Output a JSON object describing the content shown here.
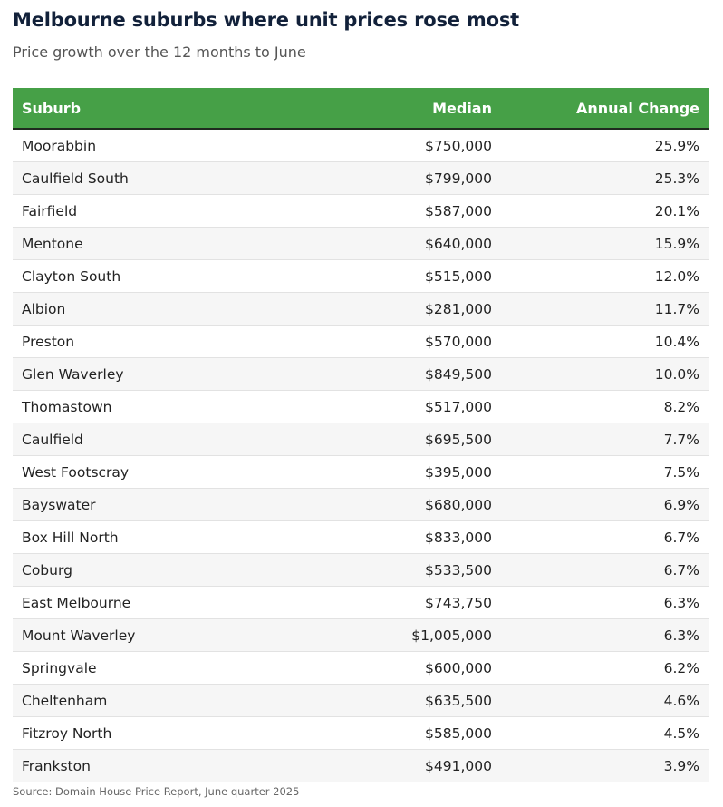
{
  "title": "Melbourne suburbs where unit prices rose most",
  "subtitle": "Price growth over the 12 months to June",
  "source": "Source: Domain House Price Report, June quarter 2025",
  "colors": {
    "header_bg": "#46a047",
    "header_text": "#ffffff",
    "title": "#12213a"
  },
  "chart_data": {
    "type": "table",
    "columns": [
      "Suburb",
      "Median",
      "Annual Change"
    ],
    "rows": [
      [
        "Moorabbin",
        "$750,000",
        "25.9%"
      ],
      [
        "Caulfield South",
        "$799,000",
        "25.3%"
      ],
      [
        "Fairfield",
        "$587,000",
        "20.1%"
      ],
      [
        "Mentone",
        "$640,000",
        "15.9%"
      ],
      [
        "Clayton South",
        "$515,000",
        "12.0%"
      ],
      [
        "Albion",
        "$281,000",
        "11.7%"
      ],
      [
        "Preston",
        "$570,000",
        "10.4%"
      ],
      [
        "Glen Waverley",
        "$849,500",
        "10.0%"
      ],
      [
        "Thomastown",
        "$517,000",
        "8.2%"
      ],
      [
        "Caulfield",
        "$695,500",
        "7.7%"
      ],
      [
        "West Footscray",
        "$395,000",
        "7.5%"
      ],
      [
        "Bayswater",
        "$680,000",
        "6.9%"
      ],
      [
        "Box Hill North",
        "$833,000",
        "6.7%"
      ],
      [
        "Coburg",
        "$533,500",
        "6.7%"
      ],
      [
        "East Melbourne",
        "$743,750",
        "6.3%"
      ],
      [
        "Mount Waverley",
        "$1,005,000",
        "6.3%"
      ],
      [
        "Springvale",
        "$600,000",
        "6.2%"
      ],
      [
        "Cheltenham",
        "$635,500",
        "4.6%"
      ],
      [
        "Fitzroy North",
        "$585,000",
        "4.5%"
      ],
      [
        "Frankston",
        "$491,000",
        "3.9%"
      ]
    ]
  }
}
